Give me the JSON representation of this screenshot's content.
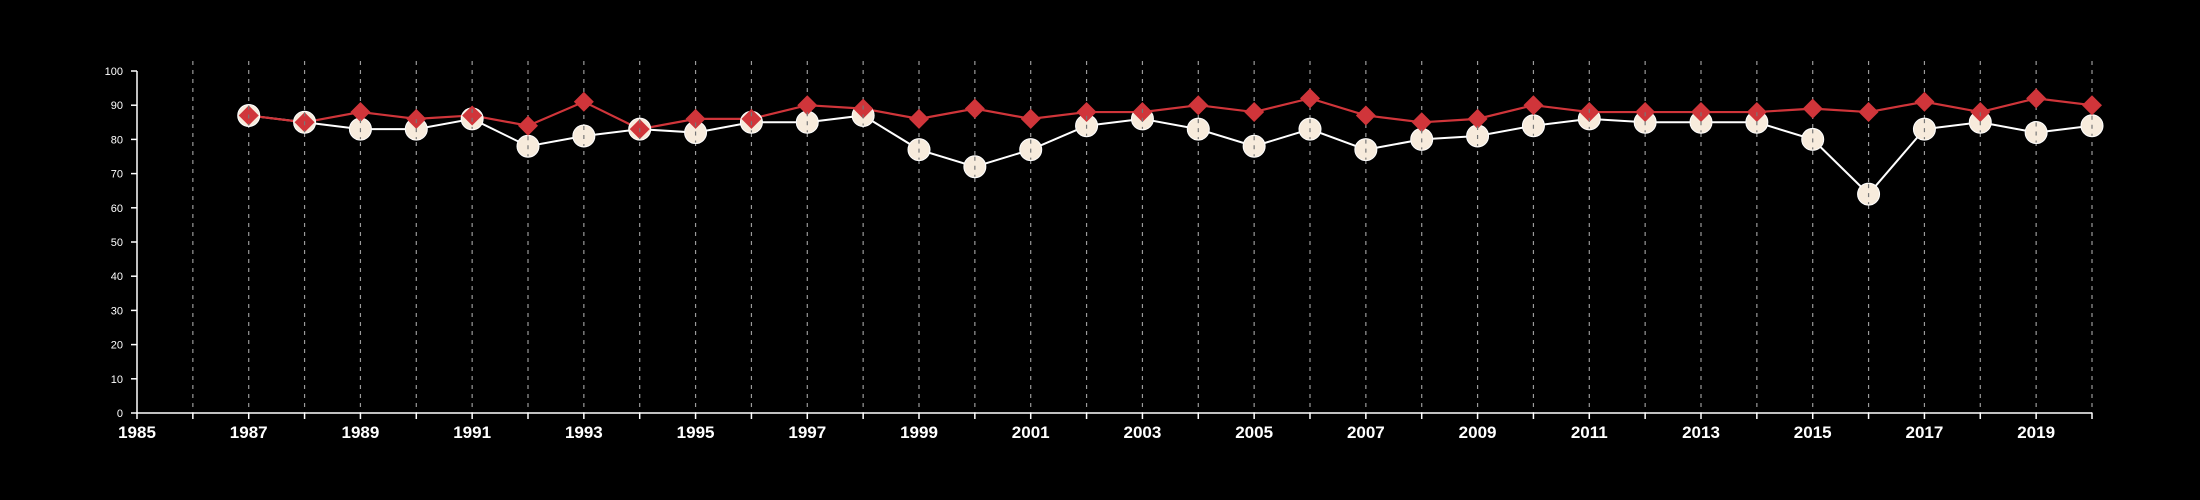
{
  "chart_data": {
    "type": "line",
    "title": "",
    "xlabel": "",
    "ylabel": "",
    "xlim": [
      1985,
      2020
    ],
    "ylim": [
      0,
      100
    ],
    "x_ticks": [
      "1985",
      "1987",
      "1989",
      "1991",
      "1993",
      "1995",
      "1997",
      "1999",
      "2001",
      "2003",
      "2005",
      "2007",
      "2009",
      "2011",
      "2013",
      "2015",
      "2017",
      "2019"
    ],
    "y_ticks": [
      "0",
      "10",
      "20",
      "30",
      "40",
      "50",
      "60",
      "70",
      "80",
      "90",
      "100"
    ],
    "vertical_dashed_gridlines": "every year",
    "legend": "none",
    "x": [
      1987,
      1988,
      1989,
      1990,
      1991,
      1992,
      1993,
      1994,
      1995,
      1996,
      1997,
      1998,
      1999,
      2000,
      2001,
      2002,
      2003,
      2004,
      2005,
      2006,
      2007,
      2008,
      2009,
      2010,
      2011,
      2012,
      2013,
      2014,
      2015,
      2016,
      2017,
      2018,
      2019,
      2020
    ],
    "series": [
      {
        "marker": "circle",
        "color": "#f7ebdc",
        "line_color": "#ffffff",
        "values": [
          87,
          85,
          83,
          83,
          86,
          78,
          81,
          83,
          82,
          85,
          85,
          87,
          77,
          72,
          77,
          84,
          86,
          83,
          78,
          83,
          77,
          80,
          81,
          84,
          86,
          85,
          85,
          85,
          80,
          64,
          83,
          85,
          82,
          84
        ]
      },
      {
        "marker": "diamond",
        "color": "#d0353a",
        "line_color": "#d0353a",
        "values": [
          87,
          85,
          88,
          86,
          87,
          84,
          91,
          83,
          86,
          86,
          90,
          89,
          86,
          89,
          86,
          88,
          88,
          90,
          88,
          92,
          87,
          85,
          86,
          90,
          88,
          88,
          88,
          88,
          89,
          88,
          91,
          88,
          92,
          90
        ]
      }
    ]
  }
}
